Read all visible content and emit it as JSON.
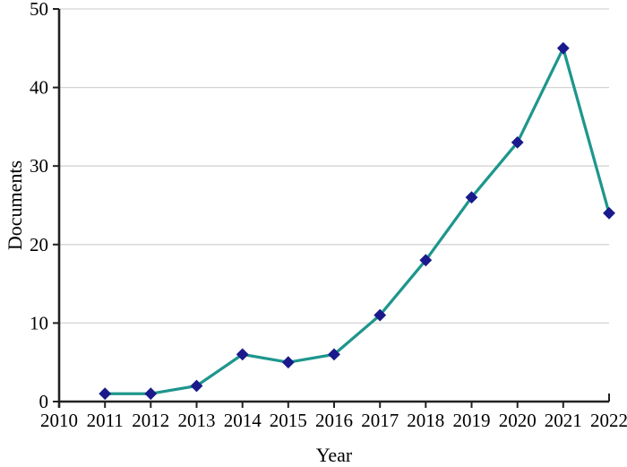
{
  "figure": {
    "background": "#FFFFFF"
  },
  "chart_data": {
    "type": "line",
    "title": "",
    "xlabel": "Year",
    "ylabel": "Documents",
    "x": [
      2011,
      2012,
      2013,
      2014,
      2015,
      2016,
      2017,
      2018,
      2019,
      2020,
      2021,
      2022
    ],
    "values": [
      1,
      1,
      2,
      6,
      5,
      6,
      11,
      18,
      26,
      33,
      45,
      24
    ],
    "xlim": [
      2010,
      2022
    ],
    "ylim": [
      0,
      50
    ],
    "xticks": [
      2010,
      2011,
      2012,
      2013,
      2014,
      2015,
      2016,
      2017,
      2018,
      2019,
      2020,
      2021,
      2022
    ],
    "yticks": [
      0,
      10,
      20,
      30,
      40,
      50
    ],
    "grid": "horizontal",
    "legend": "none",
    "marker": "diamond",
    "line_color": "#1E968C",
    "marker_color": "#1A1A8C",
    "gridline_color": "#D5D5D5",
    "axis_color": "#212121",
    "text_color": "#000000"
  }
}
